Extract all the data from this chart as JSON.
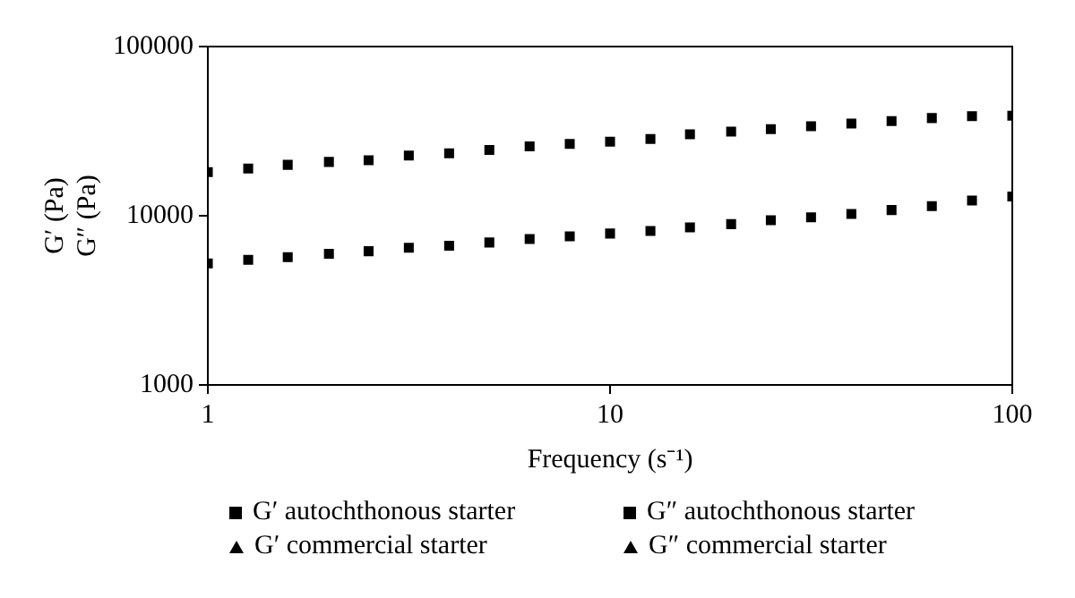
{
  "chart_data": {
    "type": "scatter",
    "xlabel": "Frequency (s⁻¹)",
    "ylabel": "G′ (Pa)\nG″ (Pa)",
    "log": "xy",
    "grid": false,
    "legend": "bottom",
    "x": [
      1,
      1.26,
      1.58,
      2,
      2.51,
      3.16,
      3.98,
      5.01,
      6.31,
      7.94,
      10,
      12.6,
      15.8,
      20,
      25.1,
      31.6,
      39.8,
      50.1,
      63.1,
      79.4,
      100
    ],
    "xlim": [
      1,
      100
    ],
    "xticks": [
      1,
      10,
      100
    ],
    "ylim": [
      1000,
      100000
    ],
    "yticks": [
      1000,
      10000,
      100000
    ],
    "series": [
      {
        "name": "G′ autochthonous starter",
        "color": "#000000",
        "marker": "square",
        "values": [
          18100,
          19000,
          20000,
          20800,
          21300,
          22700,
          23400,
          24500,
          25700,
          26600,
          27400,
          28400,
          30300,
          31400,
          32500,
          33800,
          35100,
          36300,
          37800,
          38800,
          39000
        ]
      },
      {
        "name": "G″ autochthonous starter",
        "color": "#000000",
        "marker": "square",
        "values": [
          5230,
          5490,
          5690,
          5960,
          6170,
          6470,
          6650,
          6950,
          7280,
          7550,
          7850,
          8130,
          8530,
          8920,
          9420,
          9780,
          10240,
          10810,
          11410,
          12300,
          13000
        ]
      },
      {
        "name": "G′ commercial starter",
        "color": "#000000",
        "marker": "triangle",
        "values": [
          null,
          null,
          null,
          null,
          null,
          null,
          null,
          null,
          null,
          null,
          null,
          null,
          null,
          null,
          null,
          null,
          null,
          null,
          null,
          null,
          null
        ]
      },
      {
        "name": "G″ commercial starter",
        "color": "#000000",
        "marker": "triangle",
        "values": [
          null,
          null,
          null,
          null,
          null,
          null,
          null,
          null,
          null,
          null,
          null,
          null,
          null,
          null,
          null,
          null,
          null,
          null,
          null,
          null,
          null
        ]
      }
    ]
  }
}
